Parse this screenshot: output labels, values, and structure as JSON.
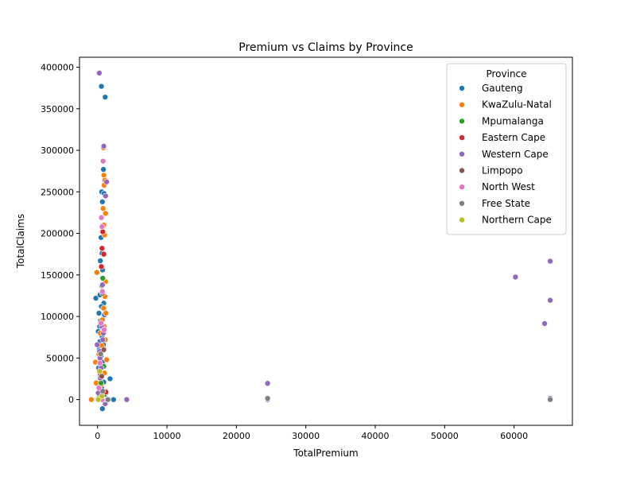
{
  "chart_data": {
    "type": "scatter",
    "title": "Premium vs Claims by Province",
    "xlabel": "TotalPremium",
    "ylabel": "TotalClaims",
    "xlim": [
      -2600,
      68400
    ],
    "ylim": [
      -31000,
      412000
    ],
    "xticks": [
      0,
      10000,
      20000,
      30000,
      40000,
      50000,
      60000
    ],
    "yticks": [
      0,
      50000,
      100000,
      150000,
      200000,
      250000,
      300000,
      350000,
      400000
    ],
    "grid": false,
    "legend": {
      "title": "Province",
      "position": "top-right"
    },
    "series": [
      {
        "name": "Gauteng",
        "color": "#1f77b4",
        "points": [
          [
            550,
            377000
          ],
          [
            1100,
            364000
          ],
          [
            850,
            277000
          ],
          [
            600,
            250000
          ],
          [
            950,
            248000
          ],
          [
            700,
            238000
          ],
          [
            800,
            210000
          ],
          [
            500,
            195000
          ],
          [
            650,
            176000
          ],
          [
            400,
            167000
          ],
          [
            720,
            156000
          ],
          [
            -250,
            122000
          ],
          [
            350,
            126000
          ],
          [
            900,
            116000
          ],
          [
            550,
            112000
          ],
          [
            200,
            104000
          ],
          [
            1000,
            102000
          ],
          [
            450,
            95000
          ],
          [
            300,
            88000
          ],
          [
            100,
            82000
          ],
          [
            650,
            76000
          ],
          [
            850,
            66000
          ],
          [
            250,
            60000
          ],
          [
            500,
            52000
          ],
          [
            700,
            45000
          ],
          [
            150,
            38000
          ],
          [
            400,
            30000
          ],
          [
            900,
            21000
          ],
          [
            600,
            14000
          ],
          [
            1200,
            8000
          ],
          [
            2300,
            0
          ],
          [
            1800,
            25000
          ],
          [
            700,
            -11000
          ],
          [
            200,
            0
          ],
          [
            1000,
            3000
          ],
          [
            350,
            70000
          ]
        ]
      },
      {
        "name": "KwaZulu-Natal",
        "color": "#ff7f0e",
        "points": [
          [
            850,
            303000
          ],
          [
            900,
            270000
          ],
          [
            1050,
            264000
          ],
          [
            950,
            258000
          ],
          [
            800,
            230000
          ],
          [
            1150,
            224000
          ],
          [
            900,
            210000
          ],
          [
            1000,
            198000
          ],
          [
            -100,
            153000
          ],
          [
            1150,
            142000
          ],
          [
            1050,
            124000
          ],
          [
            850,
            110000
          ],
          [
            1200,
            104000
          ],
          [
            700,
            96000
          ],
          [
            950,
            88000
          ],
          [
            400,
            80000
          ],
          [
            1100,
            72000
          ],
          [
            600,
            65000
          ],
          [
            -300,
            45000
          ],
          [
            800,
            40000
          ],
          [
            1000,
            32000
          ],
          [
            -200,
            20000
          ],
          [
            550,
            18000
          ],
          [
            1200,
            10000
          ],
          [
            -900,
            0
          ],
          [
            600,
            0
          ],
          [
            1300,
            48000
          ],
          [
            200,
            55000
          ]
        ]
      },
      {
        "name": "Mpumalanga",
        "color": "#2ca02c",
        "points": [
          [
            750,
            146000
          ],
          [
            600,
            137000
          ],
          [
            900,
            40000
          ],
          [
            500,
            20000
          ],
          [
            1100,
            0
          ],
          [
            300,
            5000
          ]
        ]
      },
      {
        "name": "Eastern Cape",
        "color": "#d62728",
        "points": [
          [
            750,
            202000
          ],
          [
            650,
            182000
          ],
          [
            900,
            175000
          ],
          [
            550,
            160000
          ],
          [
            1200,
            9000
          ],
          [
            800,
            0
          ],
          [
            400,
            30000
          ]
        ]
      },
      {
        "name": "Western Cape",
        "color": "#9467bd",
        "points": [
          [
            250,
            393000
          ],
          [
            900,
            305000
          ],
          [
            1300,
            262000
          ],
          [
            1150,
            245000
          ],
          [
            700,
            138000
          ],
          [
            850,
            80000
          ],
          [
            750,
            72000
          ],
          [
            600,
            88000
          ],
          [
            -50,
            66000
          ],
          [
            300,
            58000
          ],
          [
            500,
            38000
          ],
          [
            100,
            8000
          ],
          [
            400,
            26000
          ],
          [
            24500,
            19500
          ],
          [
            24500,
            0
          ],
          [
            4200,
            0
          ],
          [
            60200,
            147500
          ],
          [
            64400,
            91500
          ],
          [
            65200,
            166500
          ],
          [
            65200,
            119500
          ],
          [
            65200,
            1500
          ],
          [
            1100,
            -5000
          ],
          [
            800,
            0
          ],
          [
            350,
            50000
          ]
        ]
      },
      {
        "name": "Limpopo",
        "color": "#8c564b",
        "points": [
          [
            700,
            128000
          ],
          [
            900,
            60000
          ],
          [
            600,
            28000
          ],
          [
            1400,
            0
          ]
        ]
      },
      {
        "name": "North West",
        "color": "#e377c2",
        "points": [
          [
            800,
            287000
          ],
          [
            550,
            219000
          ],
          [
            650,
            208000
          ],
          [
            700,
            130000
          ],
          [
            500,
            92000
          ],
          [
            950,
            84000
          ],
          [
            350,
            44000
          ],
          [
            200,
            14000
          ],
          [
            650,
            0
          ]
        ]
      },
      {
        "name": "Free State",
        "color": "#7f7f7f",
        "points": [
          [
            450,
            55000
          ],
          [
            750,
            10000
          ],
          [
            24500,
            1500
          ],
          [
            65200,
            0
          ],
          [
            1500,
            0
          ]
        ]
      },
      {
        "name": "Northern Cape",
        "color": "#bcbd22",
        "points": [
          [
            300,
            34000
          ],
          [
            600,
            4000
          ],
          [
            100,
            0
          ]
        ]
      }
    ]
  }
}
